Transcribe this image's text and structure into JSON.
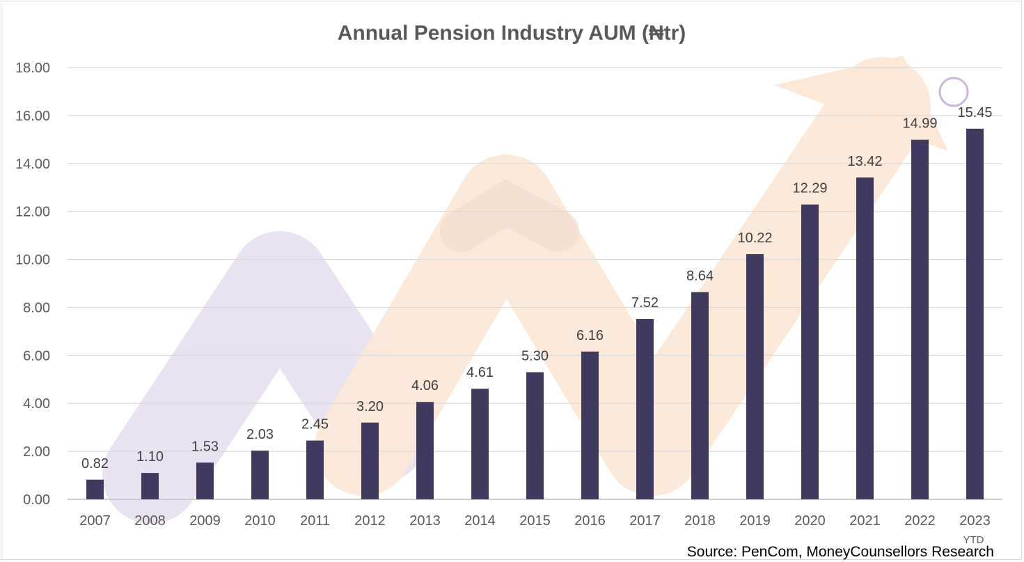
{
  "chart_data": {
    "type": "bar",
    "title": "Annual Pension Industry AUM (₦tr)",
    "xlabel": "",
    "ylabel": "",
    "categories": [
      "2007",
      "2008",
      "2009",
      "2010",
      "2011",
      "2012",
      "2013",
      "2014",
      "2015",
      "2016",
      "2017",
      "2018",
      "2019",
      "2020",
      "2021",
      "2022",
      "2023"
    ],
    "category_sublabels": {
      "16": "YTD"
    },
    "values": [
      0.82,
      1.1,
      1.53,
      2.03,
      2.45,
      3.2,
      4.06,
      4.61,
      5.3,
      6.16,
      7.52,
      8.64,
      10.22,
      12.29,
      13.42,
      14.99,
      15.45
    ],
    "value_labels": [
      "0.82",
      "1.10",
      "1.53",
      "2.03",
      "2.45",
      "3.20",
      "4.06",
      "4.61",
      "5.30",
      "6.16",
      "7.52",
      "8.64",
      "10.22",
      "12.29",
      "13.42",
      "14.99",
      "15.45"
    ],
    "ylim": [
      0,
      18
    ],
    "yticks": [
      "0.00",
      "2.00",
      "4.00",
      "6.00",
      "8.00",
      "10.00",
      "12.00",
      "14.00",
      "16.00",
      "18.00"
    ],
    "grid": true,
    "legend": "none",
    "bar_color": "#3f3a5e",
    "source": "Source: PenCom, MoneyCounsellors Research"
  }
}
